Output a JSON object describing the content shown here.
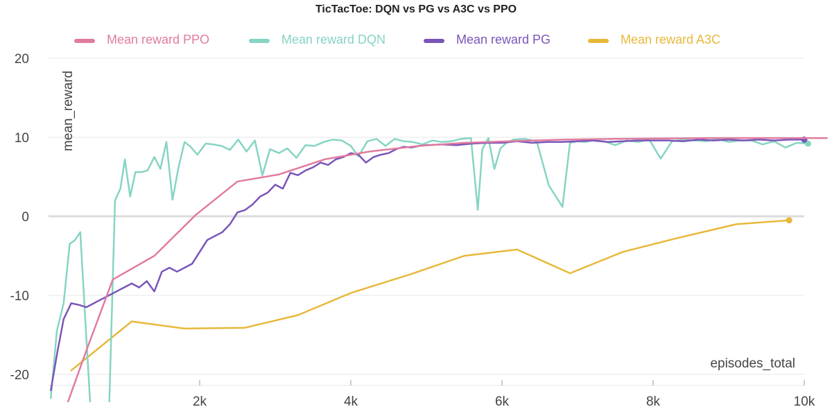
{
  "chart_data": {
    "type": "line",
    "title": "TicTacToe: DQN vs PG vs A3C vs PPO",
    "xlabel": "episodes_total",
    "ylabel": "mean_reward",
    "xlim": [
      0,
      10300
    ],
    "ylim": [
      -23,
      25
    ],
    "x_ticks": [
      2000,
      4000,
      6000,
      8000,
      10000
    ],
    "x_tick_labels": [
      "2k",
      "4k",
      "6k",
      "8k",
      "10k"
    ],
    "y_ticks": [
      -20,
      -10,
      0,
      10,
      20
    ],
    "y_tick_labels": [
      "-20",
      "-10",
      "0",
      "10",
      "20"
    ],
    "grid": true,
    "legend_position": "top",
    "series": [
      {
        "name": "Mean reward PPO",
        "color": "#e07ba0",
        "x": [
          200,
          500,
          850,
          1400,
          1950,
          2500,
          3050,
          3650,
          4250,
          4900,
          5500,
          6100,
          6800,
          7500,
          8100,
          8800,
          9500,
          10300
        ],
        "y": [
          -25,
          -17,
          -8,
          -5,
          0.2,
          4.4,
          5.3,
          7.2,
          8.2,
          8.9,
          9.3,
          9.5,
          9.7,
          9.8,
          9.85,
          9.9,
          9.9,
          9.9
        ]
      },
      {
        "name": "Mean reward DQN",
        "color": "#86d4c4",
        "x": [
          30,
          110,
          200,
          280,
          350,
          420,
          480,
          560,
          800,
          880,
          950,
          1010,
          1080,
          1150,
          1230,
          1310,
          1400,
          1480,
          1560,
          1640,
          1720,
          1800,
          1880,
          1970,
          2080,
          2180,
          2290,
          2400,
          2510,
          2620,
          2730,
          2830,
          2930,
          3050,
          3160,
          3280,
          3400,
          3520,
          3640,
          3760,
          3880,
          4000,
          4100,
          4220,
          4340,
          4460,
          4580,
          4700,
          4820,
          4950,
          5080,
          5200,
          5330,
          5460,
          5590,
          5680,
          5740,
          5820,
          5900,
          5980,
          6060,
          6150,
          6300,
          6460,
          6620,
          6800,
          6900,
          7000,
          7100,
          7200,
          7350,
          7500,
          7650,
          7800,
          7950,
          8100,
          8250,
          8400,
          8550,
          8700,
          8850,
          9000,
          9150,
          9300,
          9450,
          9600,
          9750,
          9900,
          10050
        ],
        "y": [
          -23,
          -14.5,
          -11,
          -3.5,
          -3,
          -2,
          -12,
          -25,
          -25,
          2,
          3.5,
          7.2,
          2.5,
          5.6,
          5.6,
          5.8,
          7.5,
          6,
          9.4,
          2.1,
          6.2,
          9.4,
          8.8,
          7.8,
          9.2,
          9.1,
          8.9,
          8.4,
          9.7,
          8.2,
          9.6,
          5.2,
          8.5,
          8.0,
          8.6,
          7.4,
          9,
          8.9,
          9.4,
          9.7,
          9.6,
          8.9,
          7.6,
          9.5,
          9.8,
          8.9,
          9.8,
          9.5,
          9.4,
          9.1,
          9.6,
          9.4,
          9.5,
          9.8,
          9.9,
          0.8,
          8.5,
          9.9,
          6,
          8.6,
          9.3,
          9.7,
          9.8,
          9.5,
          3.9,
          1.2,
          9.3,
          9.5,
          9.4,
          9.6,
          9.5,
          9.0,
          9.6,
          9.4,
          9.7,
          7.3,
          9.5,
          9.7,
          9.6,
          9.5,
          9.8,
          9.4,
          9.6,
          9.6,
          9.1,
          9.5,
          8.7,
          9.3,
          9.2
        ]
      },
      {
        "name": "Mean reward PG",
        "color": "#7a55b8",
        "x": [
          30,
          120,
          200,
          300,
          400,
          500,
          600,
          700,
          800,
          900,
          1000,
          1100,
          1200,
          1300,
          1400,
          1500,
          1600,
          1700,
          1800,
          1900,
          2000,
          2100,
          2200,
          2300,
          2400,
          2500,
          2600,
          2700,
          2800,
          2900,
          3000,
          3100,
          3200,
          3300,
          3400,
          3500,
          3600,
          3700,
          3800,
          3900,
          4000,
          4100,
          4200,
          4300,
          4400,
          4500,
          4600,
          4700,
          4800,
          4900,
          5000,
          5200,
          5400,
          5600,
          5800,
          6000,
          6200,
          6400,
          6600,
          6800,
          7000,
          7200,
          7400,
          7600,
          7800,
          8000,
          8200,
          8400,
          8600,
          8800,
          9000,
          9200,
          9400,
          9600,
          9800,
          10000
        ],
        "y": [
          -22,
          -17,
          -13,
          -11,
          -11.2,
          -11.5,
          -11,
          -10.5,
          -10,
          -9.5,
          -9,
          -8.5,
          -9,
          -8.2,
          -9.5,
          -7,
          -6.5,
          -7,
          -6.5,
          -6,
          -4.5,
          -3,
          -2.5,
          -2,
          -1,
          0.5,
          0.8,
          1.5,
          2.5,
          3,
          4,
          3.5,
          5.5,
          5.2,
          5.8,
          6.2,
          6.8,
          6.5,
          7.2,
          7.5,
          8.0,
          7.8,
          6.8,
          7.5,
          7.8,
          8,
          8.5,
          8.8,
          8.7,
          8.9,
          9.0,
          9.1,
          9.0,
          9.2,
          9.3,
          9.3,
          9.5,
          9.3,
          9.4,
          9.4,
          9.5,
          9.6,
          9.4,
          9.5,
          9.6,
          9.6,
          9.6,
          9.5,
          9.7,
          9.6,
          9.7,
          9.6,
          9.7,
          9.6,
          9.7,
          9.7
        ]
      },
      {
        "name": "Mean reward A3C",
        "color": "#e8b83a",
        "x": [
          300,
          1100,
          1800,
          2600,
          3300,
          4000,
          4800,
          5500,
          6200,
          6900,
          7600,
          8300,
          9100,
          9800
        ],
        "y": [
          -19.5,
          -13.3,
          -14.2,
          -14.1,
          -12.5,
          -9.7,
          -7.3,
          -5.0,
          -4.2,
          -7.2,
          -4.5,
          -2.8,
          -1.0,
          -0.5
        ]
      }
    ]
  }
}
